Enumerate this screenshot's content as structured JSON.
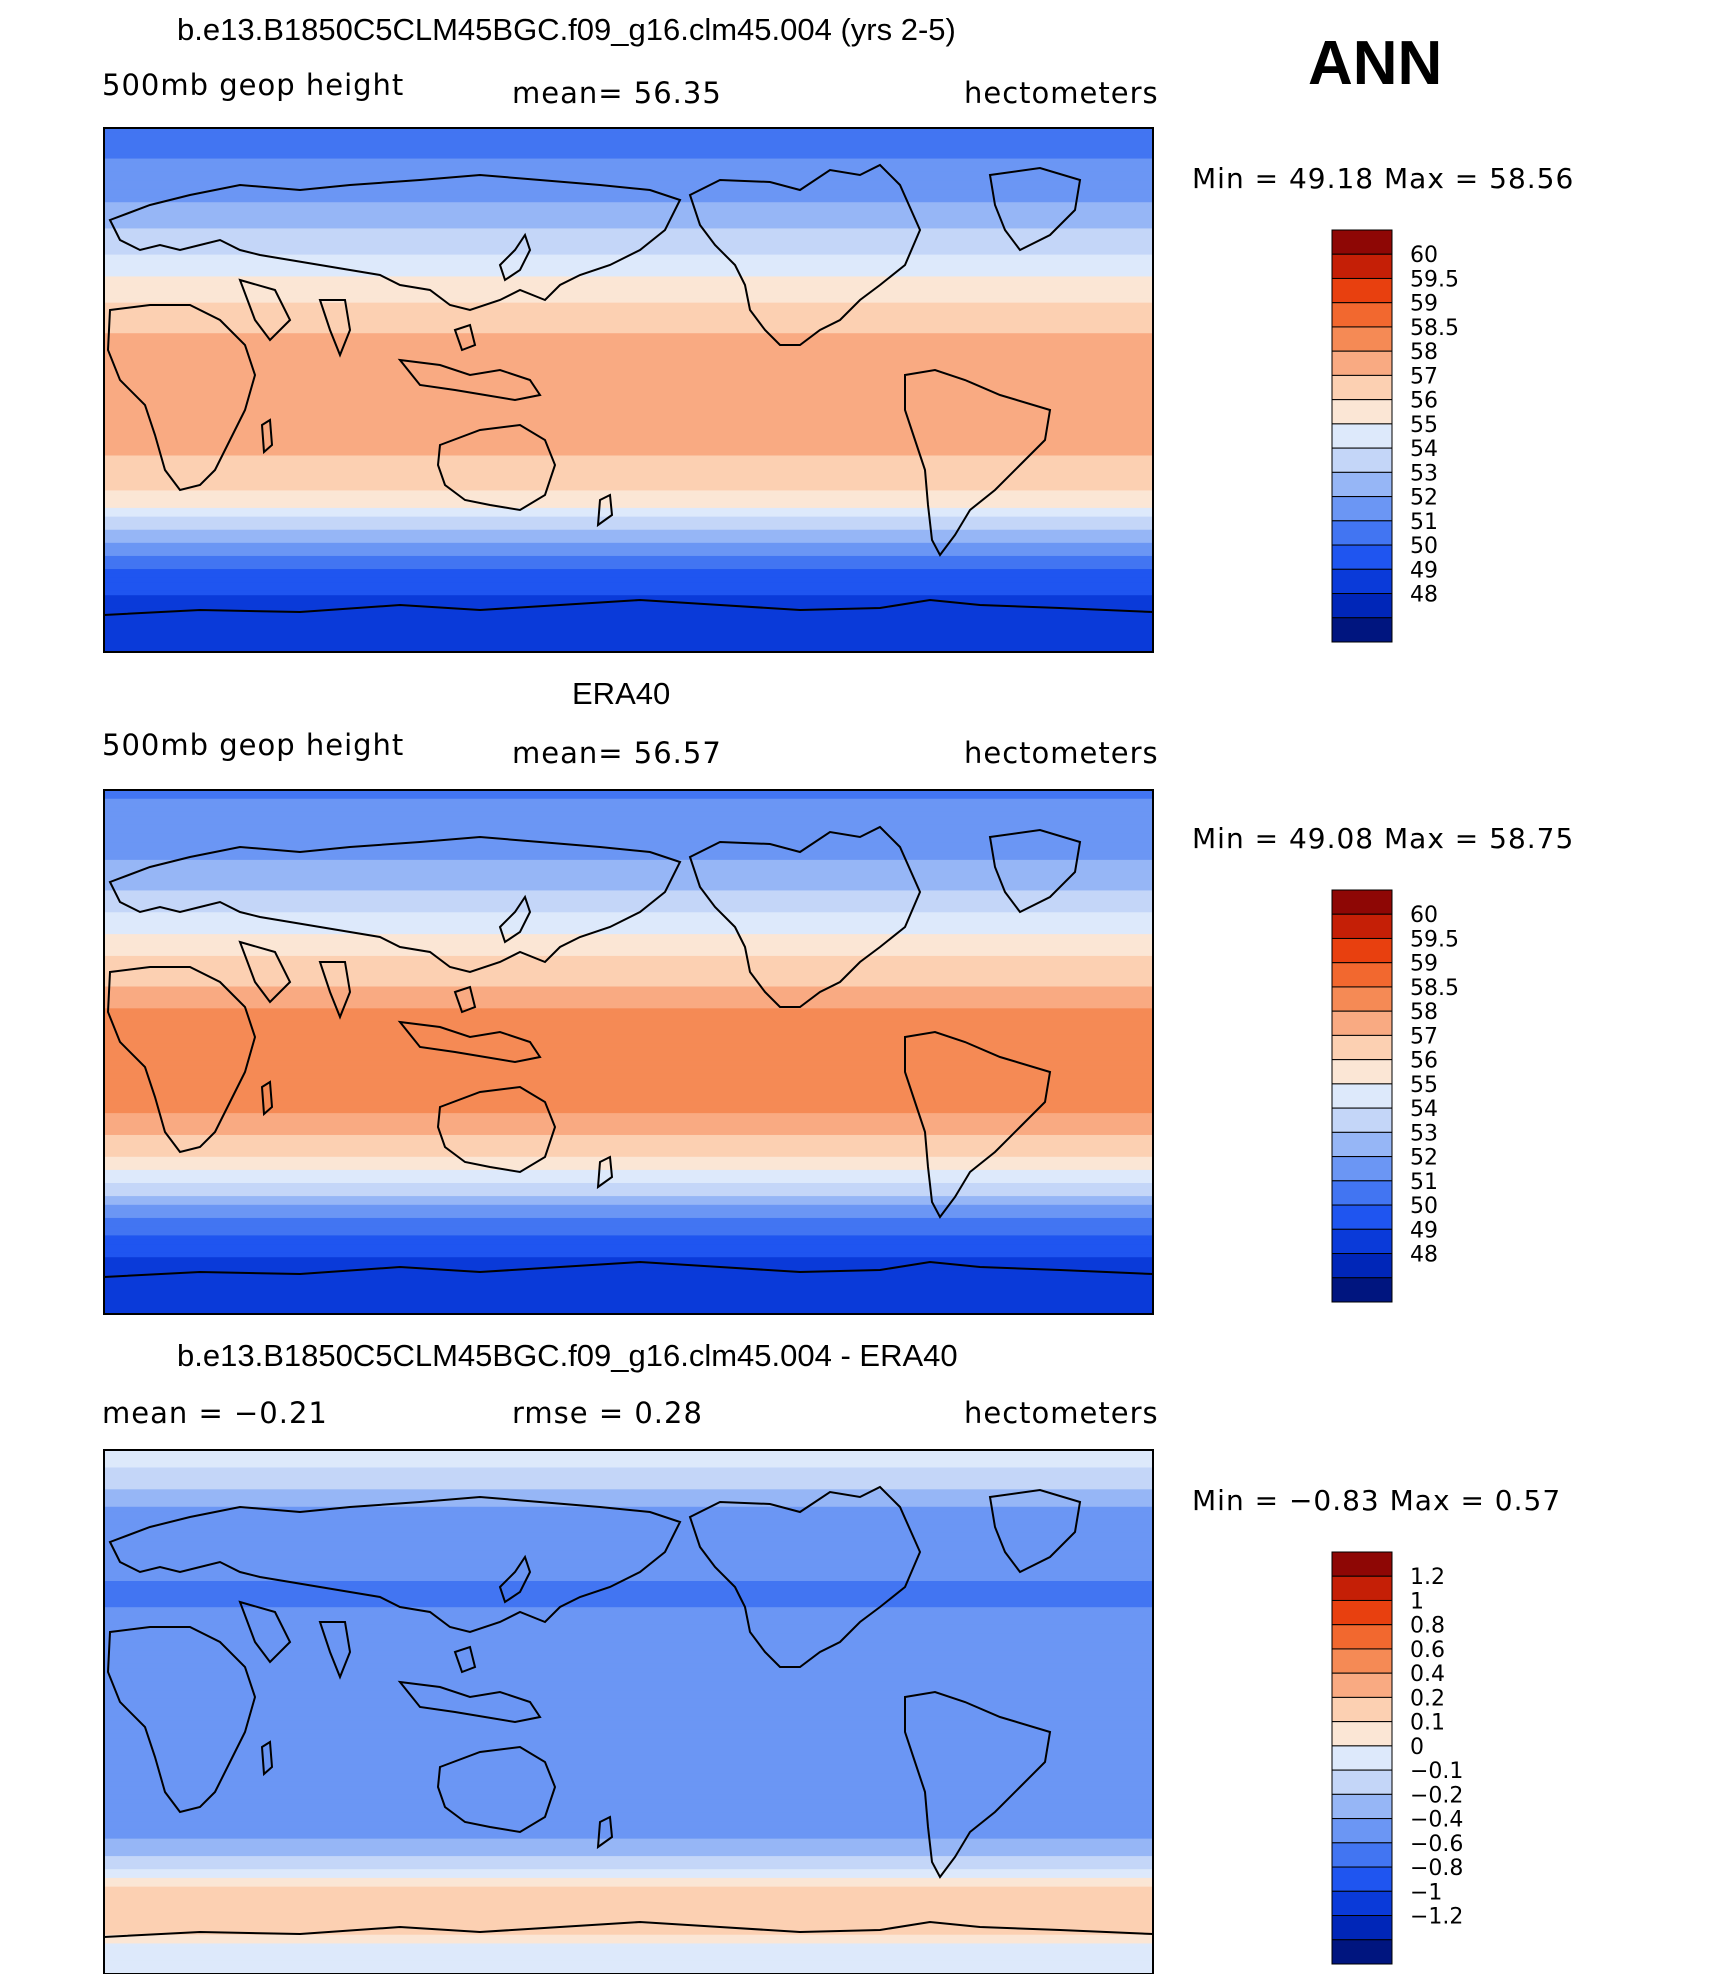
{
  "season": "ANN",
  "colors": {
    "abs_scale": [
      "#00157f",
      "#0026b8",
      "#0a3ad9",
      "#1f55f0",
      "#4275f2",
      "#6b96f4",
      "#96b6f6",
      "#c4d6f8",
      "#dde9fb",
      "#fbe6d5",
      "#fcd0b2",
      "#f9aa82",
      "#f58a55",
      "#f2682f",
      "#e8400f",
      "#c51f06",
      "#8e0705"
    ],
    "diff_scale": [
      "#00157f",
      "#0026b8",
      "#0a3ad9",
      "#1f55f0",
      "#4275f2",
      "#6b96f4",
      "#96b6f6",
      "#c4d6f8",
      "#dde9fb",
      "#fbe6d5",
      "#fcd0b2",
      "#f9aa82",
      "#f58a55",
      "#f2682f",
      "#e8400f",
      "#c51f06",
      "#8e0705"
    ],
    "coast": "#000000"
  },
  "panels": [
    {
      "title": "b.e13.B1850C5CLM45BGC.f09_g16.clm45.004 (yrs 2-5)",
      "left_label": "500mb  geop  height",
      "center_label": "mean=   56.35",
      "right_label": "hectometers",
      "minmax": "Min =    49.18  Max =    58.56"
    },
    {
      "title": "ERA40",
      "left_label": "500mb  geop  height",
      "center_label": "mean=   56.57",
      "right_label": "hectometers",
      "minmax": "Min =    49.08  Max =    58.75"
    },
    {
      "title": "b.e13.B1850C5CLM45BGC.f09_g16.clm45.004 - ERA40",
      "left_label": "mean  =    −0.21",
      "center_label": "rmse  =     0.28",
      "right_label": "hectometers",
      "minmax": "Min =    −0.83  Max =     0.57"
    }
  ],
  "chart_data": [
    {
      "type": "heatmap",
      "title": "b.e13.B1850C5CLM45BGC.f09_g16.clm45.004 (yrs 2-5)",
      "variable": "500mb geop height",
      "units": "hectometers",
      "mean": 56.35,
      "min": 49.18,
      "max": 58.56,
      "colorbar_levels": [
        "60",
        "59.5",
        "59",
        "58.5",
        "58",
        "57",
        "56",
        "55",
        "54",
        "53",
        "52",
        "51",
        "50",
        "49",
        "48"
      ],
      "latitude_profile": [
        [
          -90,
          49.3
        ],
        [
          -80,
          49.5
        ],
        [
          -70,
          50.0
        ],
        [
          -60,
          51.2
        ],
        [
          -50,
          53.6
        ],
        [
          -40,
          56.0
        ],
        [
          -30,
          57.6
        ],
        [
          -20,
          58.1
        ],
        [
          -10,
          58.3
        ],
        [
          0,
          58.3
        ],
        [
          10,
          58.3
        ],
        [
          20,
          58.0
        ],
        [
          30,
          57.0
        ],
        [
          40,
          55.8
        ],
        [
          50,
          54.6
        ],
        [
          60,
          53.4
        ],
        [
          70,
          52.5
        ],
        [
          80,
          52.0
        ],
        [
          90,
          51.8
        ]
      ]
    },
    {
      "type": "heatmap",
      "title": "ERA40",
      "variable": "500mb geop height",
      "units": "hectometers",
      "mean": 56.57,
      "min": 49.08,
      "max": 58.75,
      "colorbar_levels": [
        "60",
        "59.5",
        "59",
        "58.5",
        "58",
        "57",
        "56",
        "55",
        "54",
        "53",
        "52",
        "51",
        "50",
        "49",
        "48"
      ],
      "latitude_profile": [
        [
          -90,
          49.2
        ],
        [
          -80,
          49.4
        ],
        [
          -70,
          50.0
        ],
        [
          -60,
          51.3
        ],
        [
          -50,
          53.8
        ],
        [
          -40,
          56.2
        ],
        [
          -30,
          57.9
        ],
        [
          -20,
          58.6
        ],
        [
          -10,
          58.7
        ],
        [
          0,
          58.7
        ],
        [
          10,
          58.7
        ],
        [
          20,
          58.3
        ],
        [
          30,
          57.3
        ],
        [
          40,
          56.0
        ],
        [
          50,
          54.7
        ],
        [
          60,
          53.5
        ],
        [
          70,
          52.7
        ],
        [
          80,
          52.2
        ],
        [
          90,
          51.9
        ]
      ]
    },
    {
      "type": "heatmap",
      "title": "b.e13.B1850C5CLM45BGC.f09_g16.clm45.004 - ERA40",
      "units": "hectometers",
      "mean": -0.21,
      "rmse": 0.28,
      "min": -0.83,
      "max": 0.57,
      "colorbar_levels": [
        "1.2",
        "1",
        "0.8",
        "0.6",
        "0.4",
        "0.2",
        "0.1",
        "0",
        "−0.1",
        "−0.2",
        "−0.4",
        "−0.6",
        "−0.8",
        "−1",
        "−1.2"
      ],
      "latitude_profile": [
        [
          -90,
          0.05
        ],
        [
          -80,
          0.1
        ],
        [
          -70,
          0.35
        ],
        [
          -60,
          0.2
        ],
        [
          -50,
          -0.1
        ],
        [
          -40,
          -0.25
        ],
        [
          -30,
          -0.2
        ],
        [
          -20,
          -0.3
        ],
        [
          -10,
          -0.3
        ],
        [
          0,
          -0.3
        ],
        [
          10,
          -0.3
        ],
        [
          20,
          -0.25
        ],
        [
          30,
          -0.3
        ],
        [
          40,
          -0.45
        ],
        [
          50,
          -0.35
        ],
        [
          60,
          -0.25
        ],
        [
          70,
          -0.2
        ],
        [
          80,
          -0.05
        ],
        [
          90,
          0.1
        ]
      ]
    }
  ]
}
